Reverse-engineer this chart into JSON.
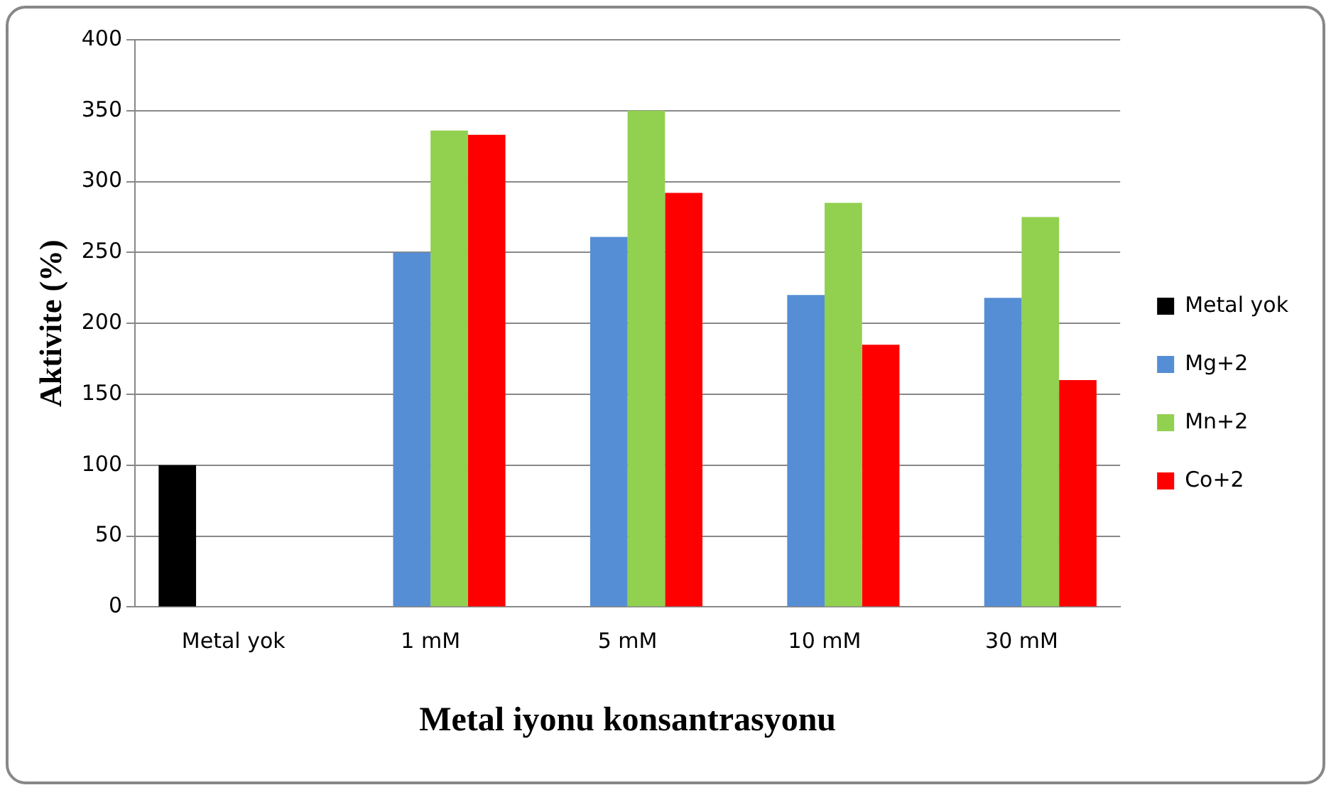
{
  "chart_data": {
    "type": "bar",
    "xlabel": "Metal iyonu konsantrasyonu",
    "ylabel": "Aktivite (%)",
    "categories": [
      "Metal yok",
      "1 mM",
      "5 mM",
      "10 mM",
      "30 mM"
    ],
    "series": [
      {
        "name": "Metal yok",
        "color": "#000000",
        "values": [
          100,
          null,
          null,
          null,
          null
        ]
      },
      {
        "name": "Mg+2",
        "color": "#558ed5",
        "values": [
          null,
          250,
          261,
          220,
          218
        ]
      },
      {
        "name": "Mn+2",
        "color": "#92d050",
        "values": [
          null,
          336,
          350,
          285,
          275
        ]
      },
      {
        "name": "Co+2",
        "color": "#ff0000",
        "values": [
          null,
          333,
          292,
          185,
          160
        ]
      }
    ],
    "ylim": [
      0,
      400
    ],
    "yticks": [
      0,
      50,
      100,
      150,
      200,
      250,
      300,
      350,
      400
    ],
    "grid": "y",
    "legend": "right"
  }
}
